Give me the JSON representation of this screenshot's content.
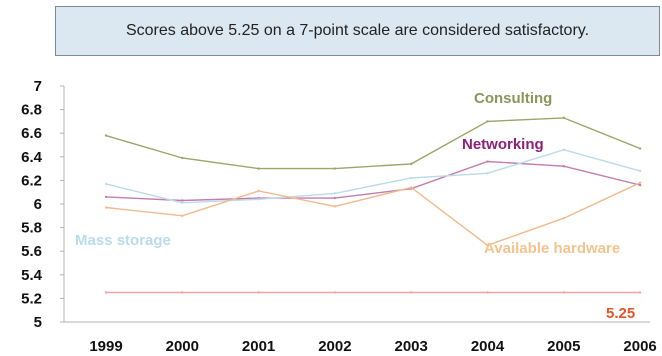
{
  "note": {
    "text": "Scores above 5.25 on a 7-point scale are considered satisfactory."
  },
  "chart_data": {
    "type": "line",
    "title": "",
    "xlabel": "",
    "ylabel": "",
    "ylim": [
      5,
      7
    ],
    "yticks": [
      "7",
      "6.8",
      "6.6",
      "6.4",
      "6.2",
      "6",
      "5.8",
      "5.6",
      "5.4",
      "5.2",
      "5"
    ],
    "ytick_values": [
      7,
      6.8,
      6.6,
      6.4,
      6.2,
      6,
      5.8,
      5.6,
      5.4,
      5.2,
      5
    ],
    "categories": [
      "1999",
      "2000",
      "2001",
      "2002",
      "2003",
      "2004",
      "2005",
      "2006"
    ],
    "grid": false,
    "legend": "none (series labelled inline)",
    "series": [
      {
        "name": "Consulting",
        "color": "#9aa66a",
        "label_color": "#8a965a",
        "values": [
          6.58,
          6.39,
          6.3,
          6.3,
          6.34,
          6.7,
          6.73,
          6.47
        ]
      },
      {
        "name": "Networking",
        "color": "#c27db0",
        "label_color": "#8b1f7a",
        "values": [
          6.06,
          6.03,
          6.05,
          6.05,
          6.13,
          6.36,
          6.32,
          6.16
        ]
      },
      {
        "name": "Mass storage",
        "color": "#bcdbe8",
        "label_color": "#b8dcea",
        "values": [
          6.17,
          6.01,
          6.04,
          6.09,
          6.22,
          6.26,
          6.46,
          6.28
        ]
      },
      {
        "name": "Available hardware",
        "color": "#f2b98b",
        "label_color": "#f5c38d",
        "values": [
          5.97,
          5.9,
          6.11,
          5.98,
          6.14,
          5.65,
          5.88,
          6.18
        ]
      },
      {
        "name": "5.25",
        "color": "#f2a3a8",
        "label_color": "#e0552a",
        "values": [
          5.25,
          5.25,
          5.25,
          5.25,
          5.25,
          5.25,
          5.25,
          5.25
        ]
      }
    ]
  }
}
